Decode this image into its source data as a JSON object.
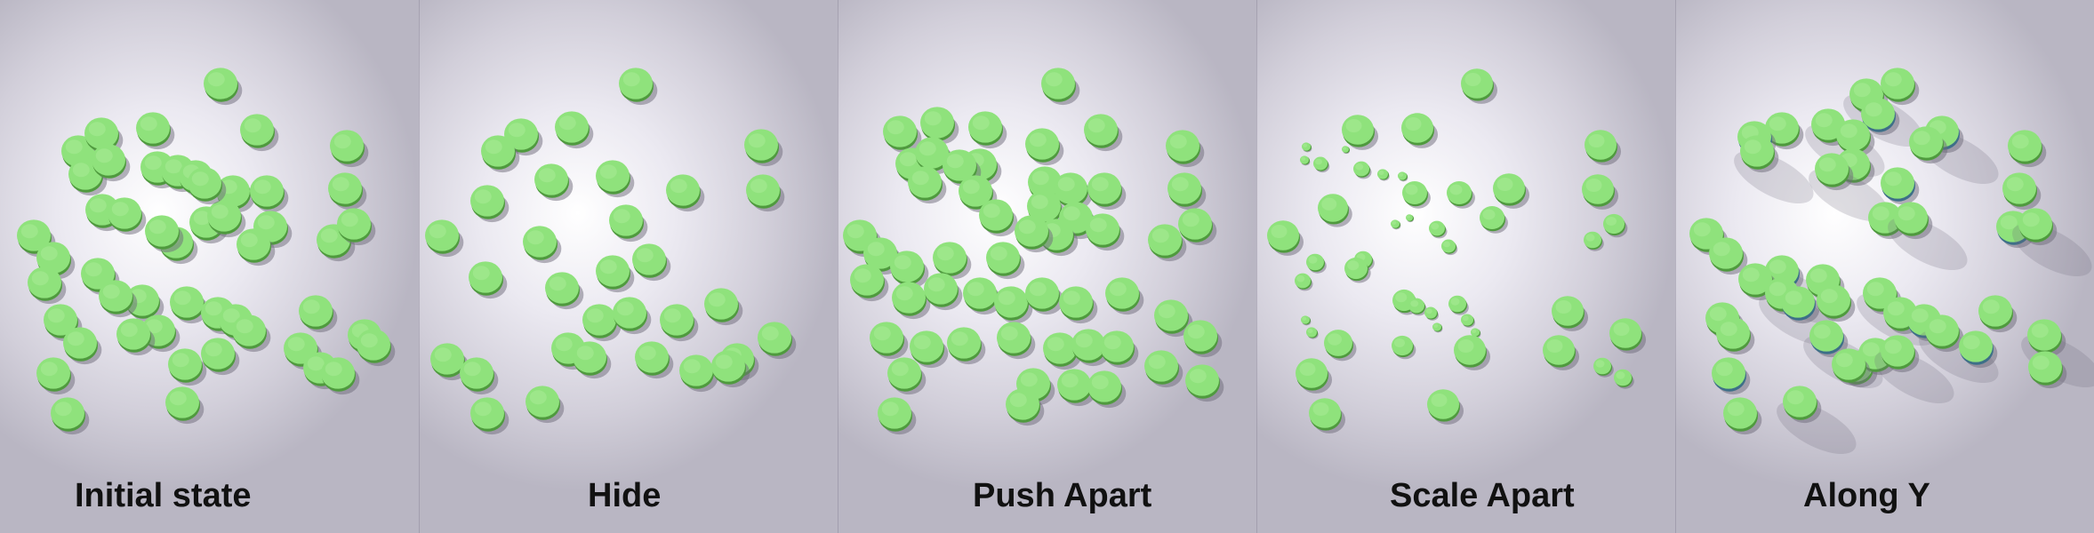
{
  "panels": [
    {
      "id": "initial-state",
      "caption": "Initial state"
    },
    {
      "id": "hide",
      "caption": "Hide"
    },
    {
      "id": "push-apart",
      "caption": "Push Apart"
    },
    {
      "id": "scale-apart",
      "caption": "Scale Apart"
    },
    {
      "id": "along-y",
      "caption": "Along Y"
    }
  ],
  "colors": {
    "disc_face": "#8fe27c",
    "disc_edge": "#4f9a3e",
    "disc_highlight": "#b6f2a6",
    "shadow": "#6e6a7a",
    "caption": "#111111"
  }
}
